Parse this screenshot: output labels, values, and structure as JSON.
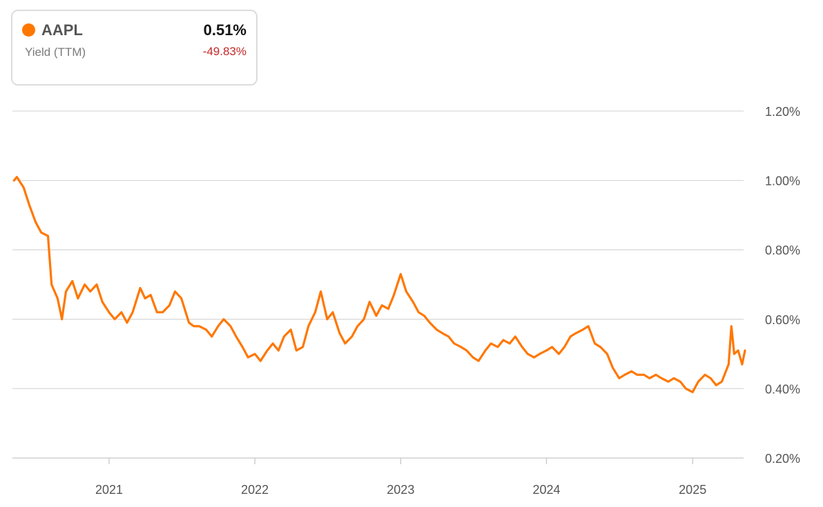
{
  "legend": {
    "ticker": "AAPL",
    "metric": "Yield (TTM)",
    "value": "0.51%",
    "change": "-49.83%",
    "series_color": "#ff7700",
    "change_color": "#c62828"
  },
  "chart_data": {
    "type": "line",
    "title": "",
    "xlabel": "",
    "ylabel": "",
    "ylim": [
      0.2,
      1.2
    ],
    "grid": true,
    "y_ticks": [
      "1.20%",
      "1.00%",
      "0.80%",
      "0.60%",
      "0.40%",
      "0.20%"
    ],
    "y_tick_values": [
      1.2,
      1.0,
      0.8,
      0.6,
      0.4,
      0.2
    ],
    "x_ticks": [
      "2021",
      "2022",
      "2023",
      "2024",
      "2025"
    ],
    "series": [
      {
        "color": "#ff7700",
        "points": [
          [
            "2020-05-08",
            1.0
          ],
          [
            "2020-05-15",
            1.01
          ],
          [
            "2020-06-01",
            0.98
          ],
          [
            "2020-06-15",
            0.93
          ],
          [
            "2020-07-01",
            0.88
          ],
          [
            "2020-07-15",
            0.85
          ],
          [
            "2020-08-01",
            0.84
          ],
          [
            "2020-08-10",
            0.7
          ],
          [
            "2020-08-25",
            0.66
          ],
          [
            "2020-09-05",
            0.6
          ],
          [
            "2020-09-15",
            0.68
          ],
          [
            "2020-10-01",
            0.71
          ],
          [
            "2020-10-15",
            0.66
          ],
          [
            "2020-11-01",
            0.7
          ],
          [
            "2020-11-15",
            0.68
          ],
          [
            "2020-12-01",
            0.7
          ],
          [
            "2020-12-15",
            0.65
          ],
          [
            "2021-01-01",
            0.62
          ],
          [
            "2021-01-15",
            0.6
          ],
          [
            "2021-02-01",
            0.62
          ],
          [
            "2021-02-15",
            0.59
          ],
          [
            "2021-03-01",
            0.62
          ],
          [
            "2021-03-20",
            0.69
          ],
          [
            "2021-04-01",
            0.66
          ],
          [
            "2021-04-15",
            0.67
          ],
          [
            "2021-05-01",
            0.62
          ],
          [
            "2021-05-15",
            0.62
          ],
          [
            "2021-06-01",
            0.64
          ],
          [
            "2021-06-15",
            0.68
          ],
          [
            "2021-07-01",
            0.66
          ],
          [
            "2021-07-20",
            0.59
          ],
          [
            "2021-08-01",
            0.58
          ],
          [
            "2021-08-15",
            0.58
          ],
          [
            "2021-09-01",
            0.57
          ],
          [
            "2021-09-15",
            0.55
          ],
          [
            "2021-10-01",
            0.58
          ],
          [
            "2021-10-15",
            0.6
          ],
          [
            "2021-11-01",
            0.58
          ],
          [
            "2021-11-15",
            0.55
          ],
          [
            "2021-12-01",
            0.52
          ],
          [
            "2021-12-15",
            0.49
          ],
          [
            "2022-01-01",
            0.5
          ],
          [
            "2022-01-15",
            0.48
          ],
          [
            "2022-02-01",
            0.51
          ],
          [
            "2022-02-15",
            0.53
          ],
          [
            "2022-03-01",
            0.51
          ],
          [
            "2022-03-15",
            0.55
          ],
          [
            "2022-04-01",
            0.57
          ],
          [
            "2022-04-15",
            0.51
          ],
          [
            "2022-05-01",
            0.52
          ],
          [
            "2022-05-15",
            0.58
          ],
          [
            "2022-06-01",
            0.62
          ],
          [
            "2022-06-15",
            0.68
          ],
          [
            "2022-07-01",
            0.6
          ],
          [
            "2022-07-15",
            0.62
          ],
          [
            "2022-08-01",
            0.56
          ],
          [
            "2022-08-15",
            0.53
          ],
          [
            "2022-09-01",
            0.55
          ],
          [
            "2022-09-15",
            0.58
          ],
          [
            "2022-10-01",
            0.6
          ],
          [
            "2022-10-15",
            0.65
          ],
          [
            "2022-11-01",
            0.61
          ],
          [
            "2022-11-15",
            0.64
          ],
          [
            "2022-12-01",
            0.63
          ],
          [
            "2022-12-15",
            0.67
          ],
          [
            "2023-01-01",
            0.73
          ],
          [
            "2023-01-15",
            0.68
          ],
          [
            "2023-02-01",
            0.65
          ],
          [
            "2023-02-15",
            0.62
          ],
          [
            "2023-03-01",
            0.61
          ],
          [
            "2023-03-15",
            0.59
          ],
          [
            "2023-04-01",
            0.57
          ],
          [
            "2023-04-15",
            0.56
          ],
          [
            "2023-05-01",
            0.55
          ],
          [
            "2023-05-15",
            0.53
          ],
          [
            "2023-06-01",
            0.52
          ],
          [
            "2023-06-15",
            0.51
          ],
          [
            "2023-07-01",
            0.49
          ],
          [
            "2023-07-15",
            0.48
          ],
          [
            "2023-08-01",
            0.51
          ],
          [
            "2023-08-15",
            0.53
          ],
          [
            "2023-09-01",
            0.52
          ],
          [
            "2023-09-15",
            0.54
          ],
          [
            "2023-10-01",
            0.53
          ],
          [
            "2023-10-15",
            0.55
          ],
          [
            "2023-11-01",
            0.52
          ],
          [
            "2023-11-15",
            0.5
          ],
          [
            "2023-12-01",
            0.49
          ],
          [
            "2023-12-15",
            0.5
          ],
          [
            "2024-01-01",
            0.51
          ],
          [
            "2024-01-15",
            0.52
          ],
          [
            "2024-02-01",
            0.5
          ],
          [
            "2024-02-15",
            0.52
          ],
          [
            "2024-03-01",
            0.55
          ],
          [
            "2024-03-15",
            0.56
          ],
          [
            "2024-04-01",
            0.57
          ],
          [
            "2024-04-15",
            0.58
          ],
          [
            "2024-05-01",
            0.53
          ],
          [
            "2024-05-15",
            0.52
          ],
          [
            "2024-06-01",
            0.5
          ],
          [
            "2024-06-15",
            0.46
          ],
          [
            "2024-07-01",
            0.43
          ],
          [
            "2024-07-15",
            0.44
          ],
          [
            "2024-08-01",
            0.45
          ],
          [
            "2024-08-15",
            0.44
          ],
          [
            "2024-09-01",
            0.44
          ],
          [
            "2024-09-15",
            0.43
          ],
          [
            "2024-10-01",
            0.44
          ],
          [
            "2024-10-15",
            0.43
          ],
          [
            "2024-11-01",
            0.42
          ],
          [
            "2024-11-15",
            0.43
          ],
          [
            "2024-12-01",
            0.42
          ],
          [
            "2024-12-15",
            0.4
          ],
          [
            "2025-01-01",
            0.39
          ],
          [
            "2025-01-15",
            0.42
          ],
          [
            "2025-02-01",
            0.44
          ],
          [
            "2025-02-15",
            0.43
          ],
          [
            "2025-03-01",
            0.41
          ],
          [
            "2025-03-15",
            0.42
          ],
          [
            "2025-04-01",
            0.47
          ],
          [
            "2025-04-08",
            0.58
          ],
          [
            "2025-04-15",
            0.5
          ],
          [
            "2025-04-25",
            0.51
          ],
          [
            "2025-05-05",
            0.47
          ],
          [
            "2025-05-12",
            0.51
          ]
        ]
      }
    ]
  }
}
